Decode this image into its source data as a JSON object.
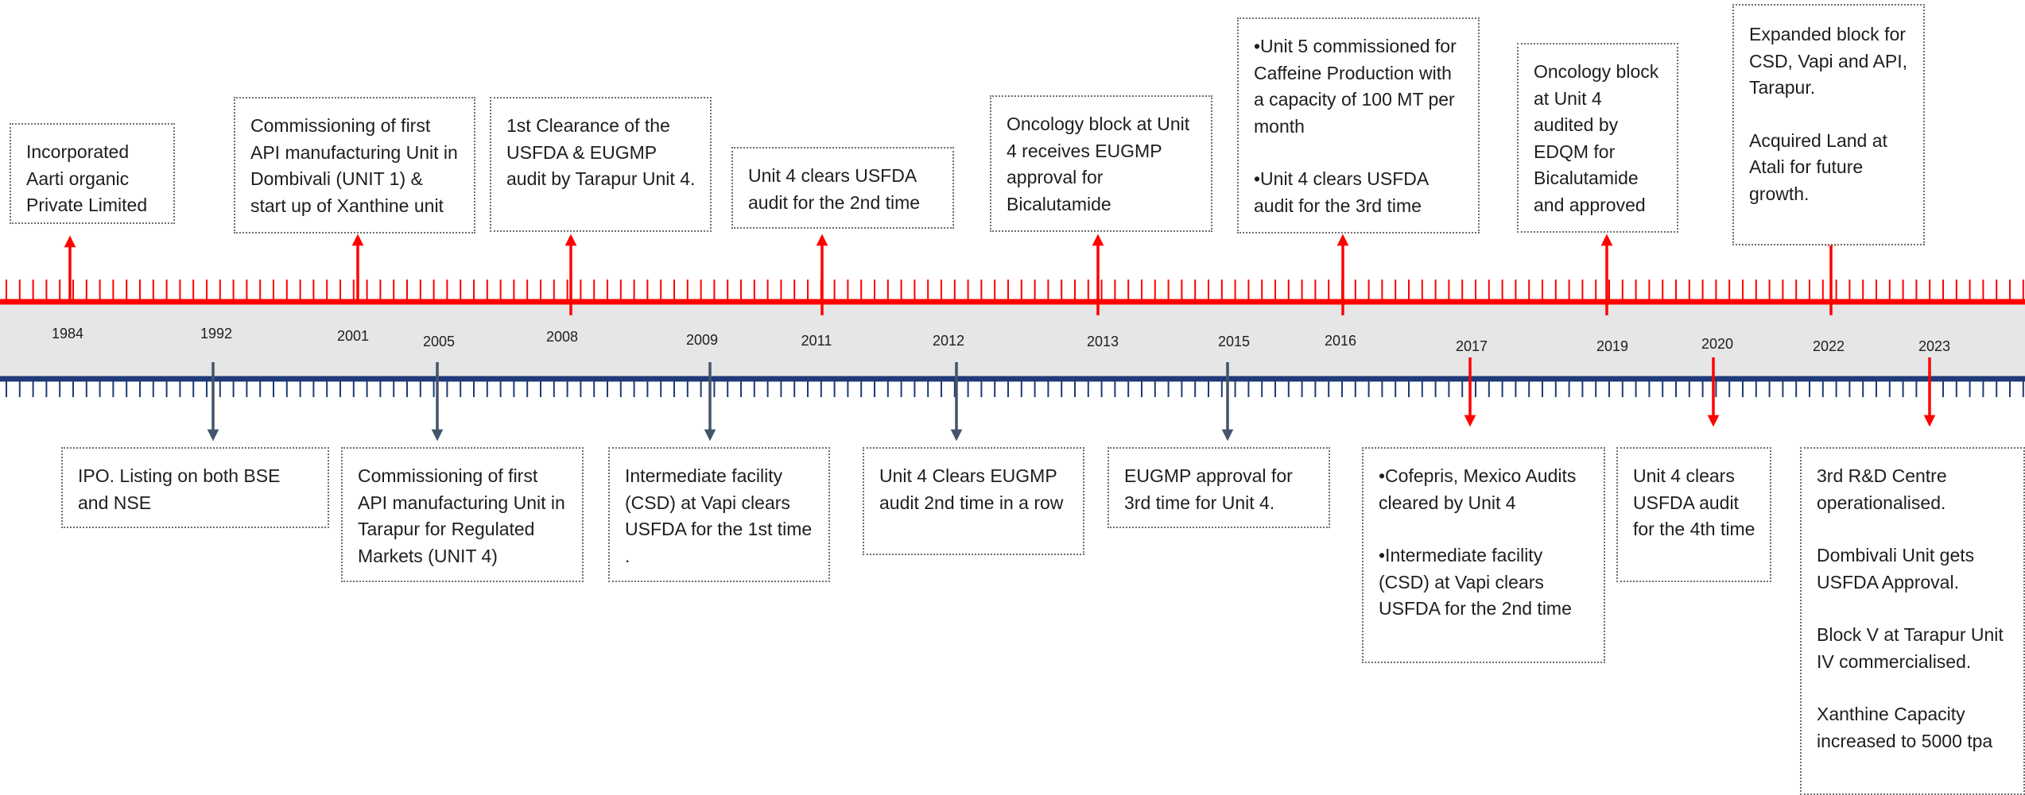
{
  "colors": {
    "top_line": "#ff0000",
    "bottom_line": "#1f3a78",
    "band": "#e6e6e6",
    "up_arrow": "#ff0000",
    "down_arrow_slate": "#44546a",
    "down_arrow_red": "#ff0000"
  },
  "years": {
    "y1984": "1984",
    "y1992": "1992",
    "y2001": "2001",
    "y2005": "2005",
    "y2008": "2008",
    "y2009": "2009",
    "y2011": "2011",
    "y2012": "2012",
    "y2013": "2013",
    "y2015": "2015",
    "y2016": "2016",
    "y2017": "2017",
    "y2019": "2019",
    "y2020": "2020",
    "y2022": "2022",
    "y2023": "2023"
  },
  "events": {
    "e1984": "Incorporated Aarti organic Private Limited",
    "e1992": "IPO. Listing on both BSE and NSE",
    "e2001": "Commissioning of first API manufacturing Unit in Dombivali (UNIT 1) & start up of Xanthine  unit",
    "e2005": "Commissioning of first API manufacturing Unit in Tarapur for Regulated Markets (UNIT 4)",
    "e2008": "1st  Clearance of the USFDA & EUGMP audit by Tarapur Unit 4.",
    "e2009": "Intermediate facility (CSD) at Vapi clears USFDA for the 1st time .",
    "e2011": "Unit 4 clears USFDA audit for the 2nd time",
    "e2012": "Unit 4 Clears EUGMP audit 2nd time in a row",
    "e2013": "Oncology block  at Unit 4 receives EUGMP approval for Bicalutamide",
    "e2015": "EUGMP approval for 3rd time for Unit 4.",
    "e2016_a": "•Unit 5 commissioned for Caffeine Production with a capacity of 100 MT per month",
    "e2016_b": "•Unit 4 clears USFDA audit for the 3rd time",
    "e2017_a": "•Cofepris, Mexico Audits cleared by Unit 4",
    "e2017_b": "•Intermediate facility (CSD) at Vapi clears USFDA for the 2nd time",
    "e2019": "Oncology block  at Unit 4 audited by EDQM for Bicalutamide and approved",
    "e2020": "Unit 4 clears USFDA audit for the 4th time",
    "e2022_a": "Expanded block for CSD, Vapi and API, Tarapur.",
    "e2022_b": "Acquired Land at Atali for future growth.",
    "e2023_a": "3rd R&D Centre operationalised.",
    "e2023_b": "Dombivali Unit gets USFDA Approval.",
    "e2023_c": "Block V at Tarapur Unit IV commercialised.",
    "e2023_d": "Xanthine Capacity increased to 5000 tpa"
  }
}
